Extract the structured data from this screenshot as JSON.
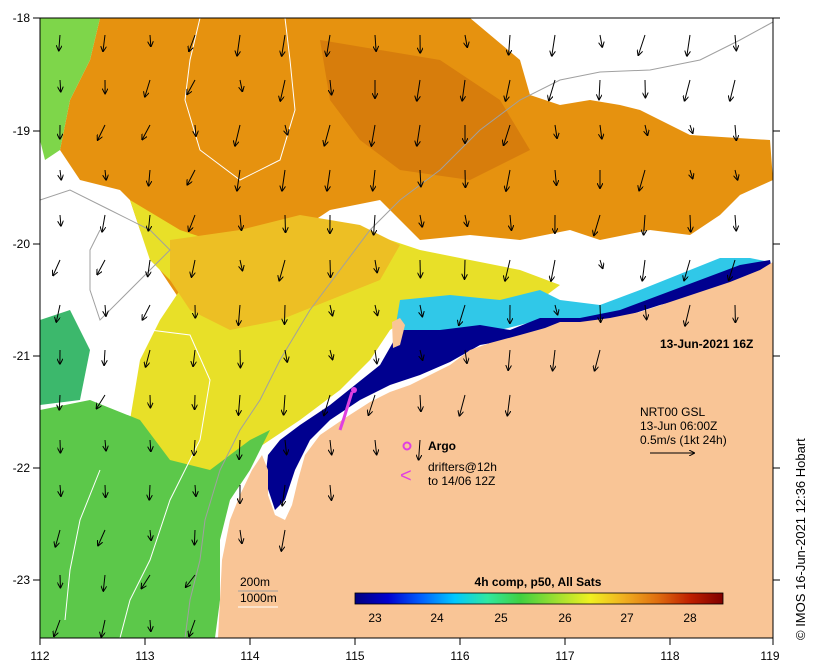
{
  "map": {
    "axes": {
      "lon_ticks": [
        "112",
        "113",
        "114",
        "115",
        "116",
        "117",
        "118",
        "119"
      ],
      "lat_ticks": [
        "-18",
        "-19",
        "-20",
        "-21",
        "-22",
        "-23"
      ],
      "lon_range": [
        112,
        119
      ],
      "lat_range": [
        -18,
        -23.5
      ]
    },
    "timestamp": "13-Jun-2021 16Z",
    "current_legend": {
      "line1": "NRT00 GSL",
      "line2": "13-Jun 06:00Z",
      "line3": "0.5m/s (1kt 24h)"
    },
    "argo_legend": {
      "label": "Argo",
      "marker_color": "#e040e0"
    },
    "drifters_legend": {
      "line1": "drifters@12h",
      "line2": "to 14/06 12Z",
      "marker_glyph": "<",
      "marker_color": "#e040e0"
    },
    "bathymetry_legend": {
      "contour1": "200m",
      "contour2": "1000m"
    },
    "colorbar": {
      "title": "4h comp, p50, All Sats",
      "tick_labels": [
        "23",
        "24",
        "25",
        "26",
        "27",
        "28"
      ],
      "min": 22.5,
      "max": 28.5,
      "colors": [
        "#00007f",
        "#0000d0",
        "#0060ff",
        "#00c8ff",
        "#30e8a0",
        "#40d040",
        "#a0e030",
        "#f0f020",
        "#f0b020",
        "#e07010",
        "#c02000",
        "#800000"
      ]
    },
    "credit": "© IMOS 16-Jun-2021 12:36 Hobart",
    "colors": {
      "land": "#f9c596",
      "no_data": "#ffffff",
      "bathy_200m": "#a0a0a0",
      "bathy_1000m": "#ffffff"
    }
  }
}
